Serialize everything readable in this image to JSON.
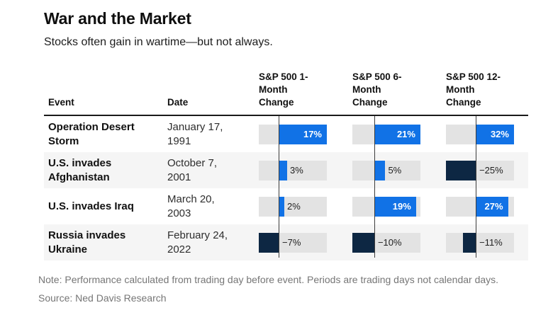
{
  "title": "War and the Market",
  "subtitle": "Stocks often gain in wartime—but not always.",
  "table": {
    "event_header": "Event",
    "date_header": "Date",
    "value_headers": [
      "S&P 500 1-\nMonth\nChange",
      "S&P 500 6-\nMonth\nChange",
      "S&P 500 12-\nMonth\nChange"
    ],
    "rows": [
      {
        "event": "Operation Desert\nStorm",
        "date": "January 17,\n1991",
        "values": [
          17,
          21,
          32
        ],
        "labels": [
          "17%",
          "21%",
          "32%"
        ]
      },
      {
        "event": "U.S. invades\nAfghanistan",
        "date": "October 7,\n2001",
        "values": [
          3,
          5,
          -25
        ],
        "labels": [
          "3%",
          "5%",
          "−25%"
        ]
      },
      {
        "event": "U.S. invades Iraq",
        "date": "March 20,\n2003",
        "values": [
          2,
          19,
          27
        ],
        "labels": [
          "2%",
          "19%",
          "27%"
        ]
      },
      {
        "event": "Russia invades\nUkraine",
        "date": "February 24,\n2022",
        "values": [
          -7,
          -10,
          -11
        ],
        "labels": [
          "−7%",
          "−10%",
          "−11%"
        ]
      }
    ]
  },
  "chart_data": {
    "type": "bar",
    "title": "War and the Market",
    "subtitle": "Stocks often gain in wartime—but not always.",
    "unit": "%",
    "categories": [
      "Operation Desert Storm",
      "U.S. invades Afghanistan",
      "U.S. invades Iraq",
      "Russia invades Ukraine"
    ],
    "dates": [
      "January 17, 1991",
      "October 7, 2001",
      "March 20, 2003",
      "February 24, 2022"
    ],
    "series": [
      {
        "name": "S&P 500 1-Month Change",
        "values": [
          17,
          3,
          2,
          -7
        ]
      },
      {
        "name": "S&P 500 6-Month Change",
        "values": [
          21,
          5,
          19,
          -10
        ]
      },
      {
        "name": "S&P 500 12-Month Change",
        "values": [
          32,
          -25,
          27,
          -11
        ]
      }
    ],
    "column_ranges": [
      {
        "min": -7,
        "max": 17
      },
      {
        "min": -10,
        "max": 21
      },
      {
        "min": -25,
        "max": 32
      }
    ],
    "zero_axis": true,
    "legend_position": "none"
  },
  "colors": {
    "positive_bar": "#1172e6",
    "negative_bar": "#0d2743",
    "track": "#e3e3e3",
    "row_stripe": "#f5f5f5",
    "header_rule": "#1a1a1a",
    "axis_line": "#3c3c3c"
  },
  "note": "Note: Performance calculated from trading day before event. Periods are trading days not calendar days.",
  "source": "Source: Ned Davis Research"
}
